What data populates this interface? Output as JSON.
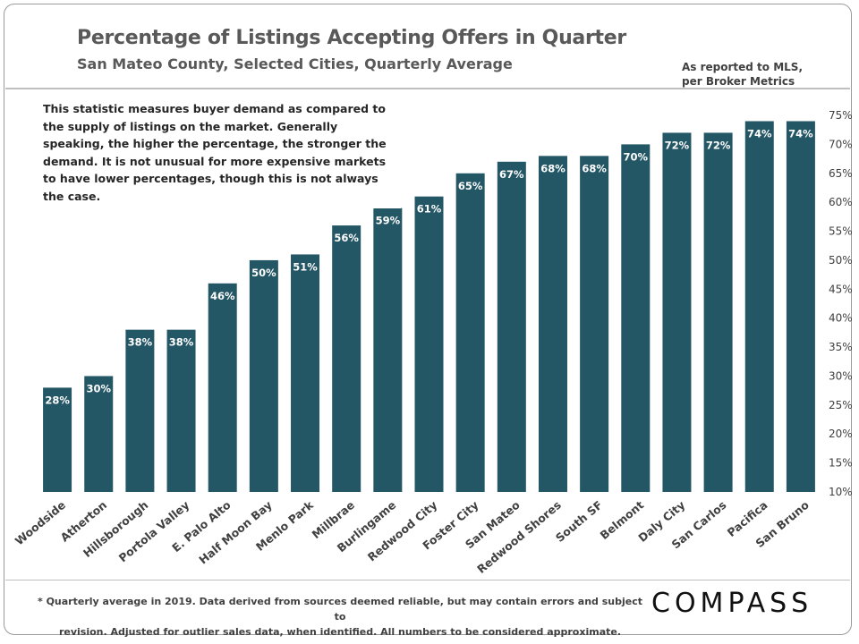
{
  "header": {
    "title": "Percentage of Listings Accepting Offers in Quarter",
    "subtitle": "San Mateo County, Selected Cities, Quarterly Average",
    "source_line1": "As reported to MLS,",
    "source_line2": "per Broker Metrics"
  },
  "note": "This statistic measures buyer demand as compared to the supply of listings on the market. Generally speaking, the higher the percentage, the stronger the demand. It is not unusual for more expensive markets to have lower percentages, though this is not always the case.",
  "footer": {
    "footnote_line1": "* Quarterly average in 2019. Data derived from sources deemed reliable, but may contain errors and subject to",
    "footnote_line2": "revision. Adjusted for outlier sales data, when identified. All numbers to be considered approximate.",
    "logo": "COMPASS"
  },
  "colors": {
    "bar": "#245766",
    "label": "#ffffff",
    "axis_text": "#404040",
    "title": "#595959"
  },
  "chart_data": {
    "type": "bar",
    "categories": [
      "Woodside",
      "Atherton",
      "Hillsborough",
      "Portola Valley",
      "E. Palo Alto",
      "Half Moon Bay",
      "Menlo Park",
      "Millbrae",
      "Burlingame",
      "Redwood City",
      "Foster City",
      "San Mateo",
      "Redwood Shores",
      "South SF",
      "Belmont",
      "Daly City",
      "San Carlos",
      "Pacifica",
      "San Bruno"
    ],
    "values": [
      28,
      30,
      38,
      38,
      46,
      50,
      51,
      56,
      59,
      61,
      65,
      67,
      68,
      68,
      70,
      72,
      72,
      74,
      74
    ],
    "data_labels": [
      "28%",
      "30%",
      "38%",
      "38%",
      "46%",
      "50%",
      "51%",
      "56%",
      "59%",
      "61%",
      "65%",
      "67%",
      "68%",
      "68%",
      "70%",
      "72%",
      "72%",
      "74%",
      "74%"
    ],
    "ylim": [
      10,
      75
    ],
    "yticks": [
      10,
      15,
      20,
      25,
      30,
      35,
      40,
      45,
      50,
      55,
      60,
      65,
      70,
      75
    ],
    "ytick_labels": [
      "10%",
      "15%",
      "20%",
      "25%",
      "30%",
      "35%",
      "40%",
      "45%",
      "50%",
      "55%",
      "60%",
      "65%",
      "70%",
      "75%"
    ],
    "y_axis_side": "right",
    "grid": false,
    "title": "Percentage of Listings Accepting Offers in Quarter",
    "xlabel": "",
    "ylabel": ""
  }
}
